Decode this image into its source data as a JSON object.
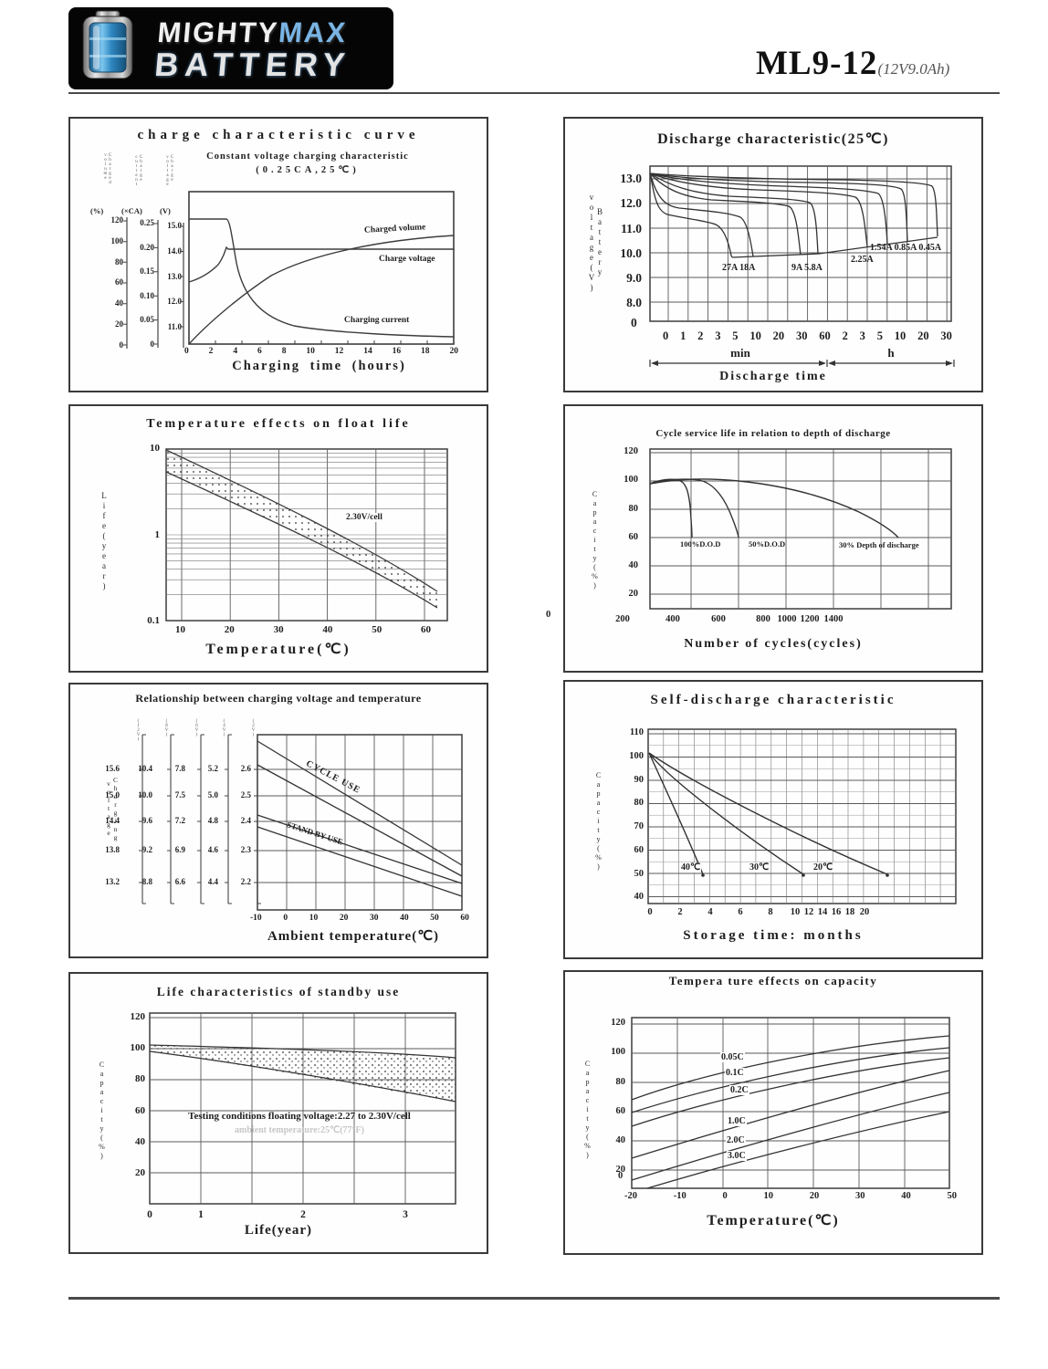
{
  "header": {
    "logo_line1_part1": "MIGHTY",
    "logo_line1_part2": "MAX",
    "logo_line2": "BATTERY",
    "model": "ML9-12",
    "spec": "(12V9.0Ah)"
  },
  "charts": {
    "charge": {
      "title": "charge characteristic curve",
      "subtitle1": "Constant voltage charging characteristic",
      "subtitle2": "(0.25CA,25℃)",
      "axis_pct_unit": "(%)",
      "axis_ca_unit": "(×CA)",
      "axis_v_unit": "(V)",
      "axis_pct_name": "Charged volume",
      "axis_ca_name": "Charge current",
      "axis_v_name": "Charge voltage",
      "pct_ticks": [
        "120",
        "100",
        "80",
        "60",
        "40",
        "20",
        "0"
      ],
      "ca_ticks": [
        "0.25",
        "0.20",
        "0.15",
        "0.10",
        "0.05",
        "0"
      ],
      "v_ticks": [
        "15.0",
        "14.0",
        "13.0",
        "12.0",
        "11.0"
      ],
      "x_ticks": [
        "0",
        "2",
        "4",
        "6",
        "8",
        "10",
        "12",
        "14",
        "16",
        "18",
        "20"
      ],
      "xlabel": "Charging time (hours)",
      "label_charged_volume": "Charged volume",
      "label_charge_voltage": "Charge voltage",
      "label_charging_current": "Charging current"
    },
    "discharge": {
      "title": "Discharge characteristic(25℃)",
      "ylabel_vertical": "Battery voltage(V)",
      "y_ticks": [
        "13.0",
        "12.0",
        "11.0",
        "10.0",
        "9.0",
        "8.0"
      ],
      "y_zero": "0",
      "x_ticks": [
        "0",
        "1",
        "2",
        "3",
        "5",
        "10",
        "20",
        "30",
        "60",
        "2",
        "3",
        "5",
        "10",
        "20",
        "30"
      ],
      "unit_min": "min",
      "unit_h": "h",
      "xlabel": "Discharge time",
      "label_27_18": "27A 18A",
      "label_9_58": "9A 5.8A",
      "label_225": "2.25A",
      "label_small": "1.54A 0.85A 0.45A"
    },
    "float_life": {
      "title": "Temperature effects on float life",
      "ylabel_vertical": "Life(year)",
      "y_ticks": [
        "10",
        "1",
        "0.1"
      ],
      "x_ticks": [
        "10",
        "20",
        "30",
        "40",
        "50",
        "60"
      ],
      "xlabel": "Temperature(℃)",
      "band_label": "2.30V/cell"
    },
    "cycle_life": {
      "title": "Cycle service life in relation to depth of discharge",
      "ylabel_vertical": "Capacity(%)",
      "y_ticks": [
        "120",
        "100",
        "80",
        "60",
        "40",
        "20"
      ],
      "origin_label": "0",
      "x_ticks": [
        "200",
        "400",
        "600",
        "800",
        "1000",
        "1200",
        "1400"
      ],
      "xlabel": "Number of cycles(cycles)",
      "label_100": "100%D.O.D",
      "label_50": "50%D.O.D",
      "label_30": "30% Depth of discharge"
    },
    "charge_voltage_temp": {
      "title": "Relationship between charging voltage and temperature",
      "ylabel_vertical": "Charging voltage",
      "axis_tops": [
        "(12V)",
        "(8V)",
        "(6V)",
        "(4V)",
        "(2V)"
      ],
      "rows": [
        [
          "15.6",
          "10.4",
          "7.8",
          "5.2",
          "2.6"
        ],
        [
          "15.0",
          "10.0",
          "7.5",
          "5.0",
          "2.5"
        ],
        [
          "14.4",
          "9.6",
          "7.2",
          "4.8",
          "2.4"
        ],
        [
          "13.8",
          "9.2",
          "6.9",
          "4.6",
          "2.3"
        ],
        [
          "13.2",
          "8.8",
          "6.6",
          "4.4",
          "2.2"
        ]
      ],
      "x_ticks": [
        "-10",
        "0",
        "10",
        "20",
        "30",
        "40",
        "50",
        "60"
      ],
      "xlabel": "Ambient temperature(℃)",
      "label_cycle": "CYCLE USE",
      "label_standby": "STAND BY USE"
    },
    "self_discharge": {
      "title": "Self-discharge characteristic",
      "ylabel_vertical": "Capacity(%)",
      "y_ticks": [
        "110",
        "100",
        "90",
        "80",
        "70",
        "60",
        "50",
        "40"
      ],
      "x_ticks": [
        "0",
        "2",
        "4",
        "6",
        "8",
        "10",
        "12",
        "14",
        "16",
        "18",
        "20"
      ],
      "xlabel": "Storage time: months",
      "label_40": "40℃",
      "label_30": "30℃",
      "label_20": "20℃"
    },
    "standby_life": {
      "title": "Life characteristics of standby use",
      "ylabel_vertical": "Capacity(%)",
      "y_ticks": [
        "120",
        "100",
        "80",
        "60",
        "40",
        "20"
      ],
      "x_ticks": [
        "0",
        "1",
        "2",
        "3"
      ],
      "xlabel": "Life(year)",
      "note1": "Testing conditions floating voltage:2.27 to 2.30V/cell",
      "note2": "ambient temperature:25℃(77°F)"
    },
    "temp_capacity": {
      "title": "Tempera ture effects on capacity",
      "ylabel_vertical": "Capacity(%)",
      "y_ticks": [
        "120",
        "100",
        "80",
        "60",
        "40",
        "20"
      ],
      "y_zero": "0",
      "x_ticks": [
        "-20",
        "-10",
        "0",
        "10",
        "20",
        "30",
        "40",
        "50"
      ],
      "xlabel": "Temperature(℃)",
      "curve_labels": [
        "0.05C",
        "0.1C",
        "0.2C",
        "1.0C",
        "2.0C",
        "3.0C"
      ]
    }
  },
  "chart_data": [
    {
      "type": "line",
      "title": "charge characteristic curve",
      "subtitle": "Constant voltage charging characteristic (0.25CA, 25C)",
      "xlabel": "Charging time (hours)",
      "x_range": [
        0,
        20
      ],
      "axes": {
        "charged_volume_pct": [
          0,
          120
        ],
        "charge_current_CA": [
          0,
          0.25
        ],
        "charge_voltage_V": [
          11,
          15
        ]
      },
      "series": [
        {
          "name": "Charged volume (%)",
          "x": [
            0,
            2,
            4,
            6,
            8,
            10,
            12,
            14,
            16,
            18,
            20
          ],
          "y": [
            0,
            25,
            47,
            62,
            74,
            82,
            88,
            93,
            96,
            99,
            102
          ]
        },
        {
          "name": "Charge voltage (V)",
          "x": [
            0,
            1,
            2,
            2.5,
            3,
            4,
            20
          ],
          "y": [
            12.55,
            12.8,
            13.2,
            13.6,
            13.85,
            13.85,
            13.85
          ]
        },
        {
          "name": "Charging current (CA)",
          "x": [
            0,
            3,
            4,
            6,
            8,
            12,
            16,
            20
          ],
          "y": [
            0.25,
            0.25,
            0.17,
            0.11,
            0.08,
            0.05,
            0.03,
            0.025
          ]
        }
      ]
    },
    {
      "type": "line",
      "title": "Discharge characteristic (25C)",
      "ylabel": "Battery voltage (V)",
      "xlabel": "Discharge time",
      "y_ticks": [
        13,
        12,
        11,
        10,
        9,
        8,
        0
      ],
      "x_ticks_min": [
        0,
        1,
        2,
        3,
        5,
        10,
        20,
        30,
        60
      ],
      "x_ticks_h": [
        2,
        3,
        5,
        10,
        20,
        30
      ],
      "series": [
        {
          "name": "27A",
          "plateau_v": 11.6,
          "cutoff_time": "4-6 min",
          "end_v": 9.7
        },
        {
          "name": "18A",
          "plateau_v": 11.85,
          "cutoff_time": "14 min",
          "end_v": 9.75
        },
        {
          "name": "9A",
          "plateau_v": 12.1,
          "cutoff_time": "35 min",
          "end_v": 9.8
        },
        {
          "name": "5.8A",
          "plateau_v": 12.2,
          "cutoff_time": "55 min",
          "end_v": 9.85
        },
        {
          "name": "2.25A",
          "plateau_v": 12.5,
          "cutoff_time": "3.3 h",
          "end_v": 10.1
        },
        {
          "name": "1.54A",
          "plateau_v": 12.6,
          "cutoff_time": "5 h",
          "end_v": 10.2
        },
        {
          "name": "0.85A",
          "plateau_v": 12.75,
          "cutoff_time": "10 h",
          "end_v": 10.35
        },
        {
          "name": "0.45A",
          "plateau_v": 12.9,
          "cutoff_time": "20 h",
          "end_v": 10.5
        }
      ]
    },
    {
      "type": "area",
      "title": "Temperature effects on float life",
      "xlabel": "Temperature (C)",
      "ylabel": "Life (year)",
      "y_scale": "log",
      "y_range": [
        0.1,
        10
      ],
      "x_range": [
        5,
        65
      ],
      "band_label": "2.30V/cell",
      "band_upper": {
        "x": [
          5,
          20,
          40,
          60
        ],
        "y": [
          10,
          5.5,
          1.7,
          0.55
        ]
      },
      "band_lower": {
        "x": [
          5,
          20,
          40,
          60
        ],
        "y": [
          6.5,
          3.6,
          1.05,
          0.37
        ]
      }
    },
    {
      "type": "line",
      "title": "Cycle service life in relation to depth of discharge",
      "xlabel": "Number of cycles (cycles)",
      "ylabel": "Capacity (%)",
      "y_range": [
        0,
        120
      ],
      "series": [
        {
          "name": "100% D.O.D",
          "x": [
            250,
            350,
            400,
            450,
            500
          ],
          "y": [
            98,
            100,
            95,
            80,
            60
          ]
        },
        {
          "name": "50% D.O.D",
          "x": [
            250,
            450,
            550,
            650,
            700
          ],
          "y": [
            98,
            97,
            90,
            75,
            60
          ]
        },
        {
          "name": "30% Depth of discharge",
          "x": [
            250,
            600,
            800,
            1000,
            1200,
            1450
          ],
          "y": [
            98,
            96,
            92,
            85,
            75,
            60
          ]
        }
      ]
    },
    {
      "type": "area",
      "title": "Relationship between charging voltage and temperature",
      "xlabel": "Ambient temperature (C)",
      "x_range": [
        -10,
        60
      ],
      "v_per_cell_ticks": [
        2.6,
        2.5,
        2.4,
        2.3,
        2.2
      ],
      "battery_scales": {
        "12V": [
          15.6,
          15.0,
          14.4,
          13.8,
          13.2
        ],
        "8V": [
          10.4,
          10.0,
          9.6,
          9.2,
          8.8
        ],
        "6V": [
          7.8,
          7.5,
          7.2,
          6.9,
          6.6
        ],
        "4V": [
          5.2,
          5.0,
          4.8,
          4.6,
          4.4
        ],
        "2V": [
          2.6,
          2.5,
          2.4,
          2.3,
          2.2
        ]
      },
      "bands": [
        {
          "name": "CYCLE USE",
          "v_per_cell_at_-10C": [
            2.6,
            2.63
          ],
          "v_per_cell_at_60C": [
            2.22,
            2.26
          ]
        },
        {
          "name": "STAND BY USE",
          "v_per_cell_at_-10C": [
            2.38,
            2.43
          ],
          "v_per_cell_at_60C": [
            2.16,
            2.2
          ]
        }
      ]
    },
    {
      "type": "line",
      "title": "Self-discharge characteristic",
      "xlabel": "Storage time: months",
      "ylabel": "Capacity (%)",
      "y_range": [
        40,
        110
      ],
      "series": [
        {
          "name": "40C",
          "x": [
            0,
            1,
            3,
            5
          ],
          "y": [
            100,
            92,
            72,
            49
          ]
        },
        {
          "name": "30C",
          "x": [
            0,
            2,
            6,
            10.5
          ],
          "y": [
            100,
            92,
            71,
            49
          ]
        },
        {
          "name": "20C",
          "x": [
            0,
            4,
            12,
            20.5
          ],
          "y": [
            100,
            91,
            70,
            49
          ]
        }
      ]
    },
    {
      "type": "area",
      "title": "Life characteristics of standby use",
      "xlabel": "Life (year)",
      "ylabel": "Capacity (%)",
      "y_range": [
        0,
        120
      ],
      "band_upper": {
        "x": [
          0,
          1,
          2,
          3,
          3.5
        ],
        "y": [
          100,
          99,
          98,
          97,
          95
        ]
      },
      "band_lower": {
        "x": [
          0,
          1,
          2,
          3,
          3.5
        ],
        "y": [
          97,
          90,
          82,
          74,
          67
        ]
      },
      "notes": [
        "Testing conditions floating voltage:2.27 to 2.30V/cell",
        "ambient temperature:25C(77F)"
      ]
    },
    {
      "type": "line",
      "title": "Temperature effects on capacity",
      "xlabel": "Temperature (C)",
      "ylabel": "Capacity (%)",
      "y_range": [
        0,
        120
      ],
      "series": [
        {
          "name": "0.05C",
          "x": [
            -20,
            0,
            20,
            50
          ],
          "y": [
            68,
            85,
            98,
            112
          ]
        },
        {
          "name": "0.1C",
          "x": [
            -20,
            0,
            20,
            50
          ],
          "y": [
            59,
            77,
            92,
            104
          ]
        },
        {
          "name": "0.2C",
          "x": [
            -20,
            0,
            20,
            50
          ],
          "y": [
            50,
            68,
            84,
            97
          ]
        },
        {
          "name": "1.0C",
          "x": [
            -20,
            0,
            20,
            50
          ],
          "y": [
            28,
            48,
            68,
            88
          ]
        },
        {
          "name": "2.0C",
          "x": [
            -20,
            0,
            20,
            50
          ],
          "y": [
            13,
            33,
            53,
            73
          ]
        },
        {
          "name": "3.0C",
          "x": [
            -17,
            0,
            20,
            50
          ],
          "y": [
            0,
            20,
            40,
            60
          ]
        }
      ]
    }
  ]
}
